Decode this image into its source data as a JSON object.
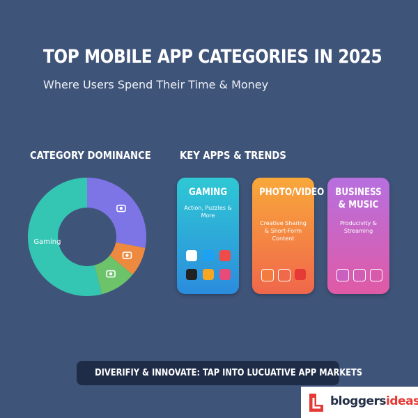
{
  "header": {
    "title": "TOP MOBILE APP CATEGORIES IN 2025",
    "subtitle": "Where Users Spend Their Time & Money"
  },
  "chart_data": {
    "type": "pie",
    "title": "CATEGORY DOMINANCE",
    "donut": true,
    "categories": [
      null,
      null,
      null,
      "Gaming"
    ],
    "values": [
      28,
      8,
      10,
      54
    ],
    "colors": [
      "#7d74e6",
      "#ee8a3f",
      "#6cc36a",
      "#34c6b3"
    ]
  },
  "key_apps": {
    "title": "KEY APPS & TRENDS",
    "cards": [
      {
        "title": "GAMING",
        "subtitle": "Action, Puzzles & More"
      },
      {
        "title": "PHOTO/VIDEO",
        "subtitle": "Creative Sharing & Short-Form Content"
      },
      {
        "title": "BUSINESS & MUSIC",
        "subtitle": "Producivity & Streaming"
      }
    ]
  },
  "banner": "DIVERIFIY & INNOVATE: TAP INTO LUCUATIVE APP MARKETS",
  "logo": {
    "part1": "bloggers",
    "part2": "ideas"
  }
}
